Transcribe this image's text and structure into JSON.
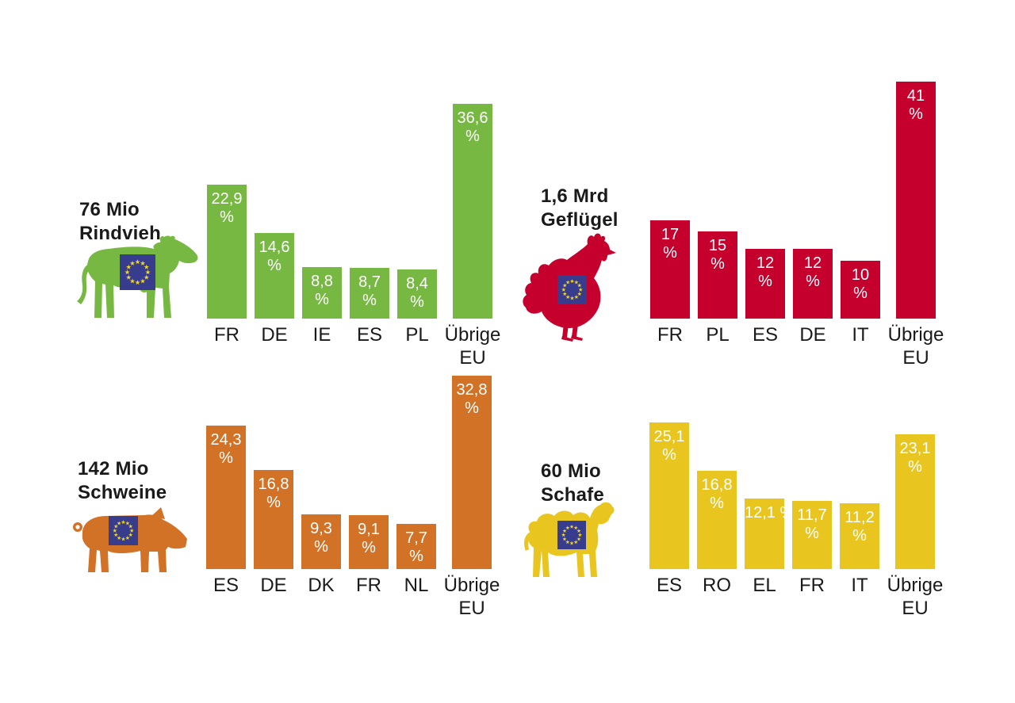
{
  "page": {
    "background": "#ffffff"
  },
  "colors": {
    "cattle": "#77B843",
    "poultry": "#C5002D",
    "pigs": "#D27227",
    "sheep": "#E9C51F",
    "eu_flag_blue": "#383C8C",
    "eu_flag_star": "#F5D91F",
    "label_text": "#1a1a1a",
    "value_text": "#ffffff"
  },
  "chart_data": [
    {
      "type": "bar",
      "id": "cattle",
      "title": "76 Mio Rindvieh",
      "title_lines": [
        "76 Mio",
        "Rindvieh"
      ],
      "icon": "cow-icon",
      "color": "#77B843",
      "unit": "%",
      "grid": false,
      "legend": false,
      "ylim": [
        0,
        41
      ],
      "categories": [
        "FR",
        "DE",
        "IE",
        "ES",
        "PL",
        "Übrige EU"
      ],
      "category_labels": [
        "FR",
        "DE",
        "IE",
        "ES",
        "PL",
        "Übrige\nEU"
      ],
      "values": [
        22.9,
        14.6,
        8.8,
        8.7,
        8.4,
        36.6
      ],
      "value_labels": [
        "22,9\n%",
        "14,6\n%",
        "8,8\n%",
        "8,7\n%",
        "8,4\n%",
        "36,6\n%"
      ]
    },
    {
      "type": "bar",
      "id": "poultry",
      "title": "1,6 Mrd Geflügel",
      "title_lines": [
        "1,6 Mrd",
        "Geflügel"
      ],
      "icon": "hen-icon",
      "color": "#C5002D",
      "unit": "%",
      "grid": false,
      "legend": false,
      "ylim": [
        0,
        41
      ],
      "categories": [
        "FR",
        "PL",
        "ES",
        "DE",
        "IT",
        "Übrige EU"
      ],
      "category_labels": [
        "FR",
        "PL",
        "ES",
        "DE",
        "IT",
        "Übrige\nEU"
      ],
      "values": [
        17,
        15,
        12,
        12,
        10,
        41
      ],
      "value_labels": [
        "17\n%",
        "15\n%",
        "12\n%",
        "12\n%",
        "10\n%",
        "41\n%"
      ]
    },
    {
      "type": "bar",
      "id": "pigs",
      "title": "142 Mio Schweine",
      "title_lines": [
        "142 Mio",
        "Schweine"
      ],
      "icon": "pig-icon",
      "color": "#D27227",
      "unit": "%",
      "grid": false,
      "legend": false,
      "ylim": [
        0,
        41
      ],
      "categories": [
        "ES",
        "DE",
        "DK",
        "FR",
        "NL",
        "Übrige EU"
      ],
      "category_labels": [
        "ES",
        "DE",
        "DK",
        "FR",
        "NL",
        "Übrige\nEU"
      ],
      "values": [
        24.3,
        16.8,
        9.3,
        9.1,
        7.7,
        32.8
      ],
      "value_labels": [
        "24,3\n%",
        "16,8\n%",
        "9,3\n%",
        "9,1\n%",
        "7,7\n%",
        "32,8\n%"
      ]
    },
    {
      "type": "bar",
      "id": "sheep",
      "title": "60 Mio Schafe",
      "title_lines": [
        "60 Mio",
        "Schafe"
      ],
      "icon": "sheep-icon",
      "color": "#E9C51F",
      "unit": "%",
      "grid": false,
      "legend": false,
      "ylim": [
        0,
        41
      ],
      "categories": [
        "ES",
        "RO",
        "EL",
        "FR",
        "IT",
        "Übrige EU"
      ],
      "category_labels": [
        "ES",
        "RO",
        "EL",
        "FR",
        "IT",
        "Übrige\nEU"
      ],
      "values": [
        25.1,
        16.8,
        12.1,
        11.7,
        11.2,
        23.1
      ],
      "value_labels": [
        "25,1\n%",
        "16,8\n%",
        "12,1 %",
        "11,7\n%",
        "11,2\n%",
        "23,1\n%"
      ]
    }
  ]
}
